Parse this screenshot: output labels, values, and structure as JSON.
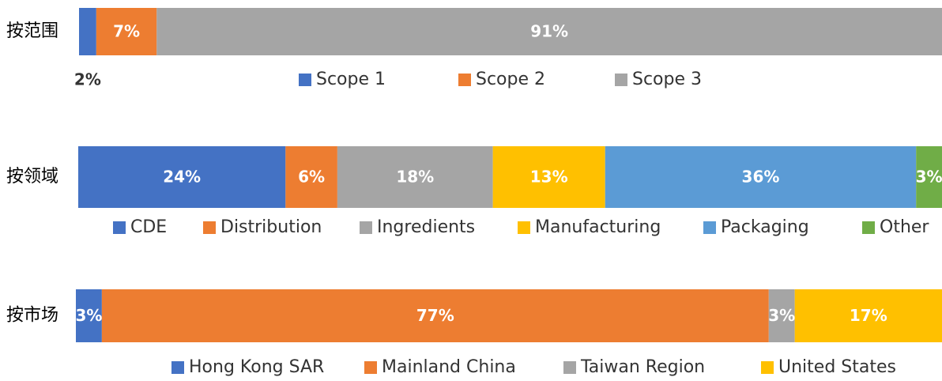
{
  "chart_data": [
    {
      "type": "bar",
      "orientation": "horizontal",
      "stacked": true,
      "categories": [
        "按范围"
      ],
      "series": [
        {
          "name": "Scope 1",
          "color": "#4472c4",
          "values": [
            2
          ],
          "value_labels": [
            "2%"
          ]
        },
        {
          "name": "Scope 2",
          "color": "#ed7d31",
          "values": [
            7
          ],
          "value_labels": [
            "7%"
          ]
        },
        {
          "name": "Scope 3",
          "color": "#a5a5a5",
          "values": [
            91
          ],
          "value_labels": [
            "91%"
          ]
        }
      ]
    },
    {
      "type": "bar",
      "orientation": "horizontal",
      "stacked": true,
      "categories": [
        "按领域"
      ],
      "series": [
        {
          "name": "CDE",
          "color": "#4472c4",
          "values": [
            24
          ],
          "value_labels": [
            "24%"
          ]
        },
        {
          "name": "Distribution",
          "color": "#ed7d31",
          "values": [
            6
          ],
          "value_labels": [
            "6%"
          ]
        },
        {
          "name": "Ingredients",
          "color": "#a5a5a5",
          "values": [
            18
          ],
          "value_labels": [
            "18%"
          ]
        },
        {
          "name": "Manufacturing",
          "color": "#ffc000",
          "values": [
            13
          ],
          "value_labels": [
            "13%"
          ]
        },
        {
          "name": "Packaging",
          "color": "#5b9bd5",
          "values": [
            36
          ],
          "value_labels": [
            "36%"
          ]
        },
        {
          "name": "Other",
          "color": "#70ad47",
          "values": [
            3
          ],
          "value_labels": [
            "3%"
          ]
        }
      ]
    },
    {
      "type": "bar",
      "orientation": "horizontal",
      "stacked": true,
      "categories": [
        "按市场"
      ],
      "series": [
        {
          "name": "Hong Kong SAR",
          "color": "#4472c4",
          "values": [
            3
          ],
          "value_labels": [
            "3%"
          ]
        },
        {
          "name": "Mainland China",
          "color": "#ed7d31",
          "values": [
            77
          ],
          "value_labels": [
            "77%"
          ]
        },
        {
          "name": "Taiwan Region",
          "color": "#a5a5a5",
          "values": [
            3
          ],
          "value_labels": [
            "3%"
          ]
        },
        {
          "name": "United States",
          "color": "#ffc000",
          "values": [
            17
          ],
          "value_labels": [
            "17%"
          ]
        }
      ]
    }
  ]
}
